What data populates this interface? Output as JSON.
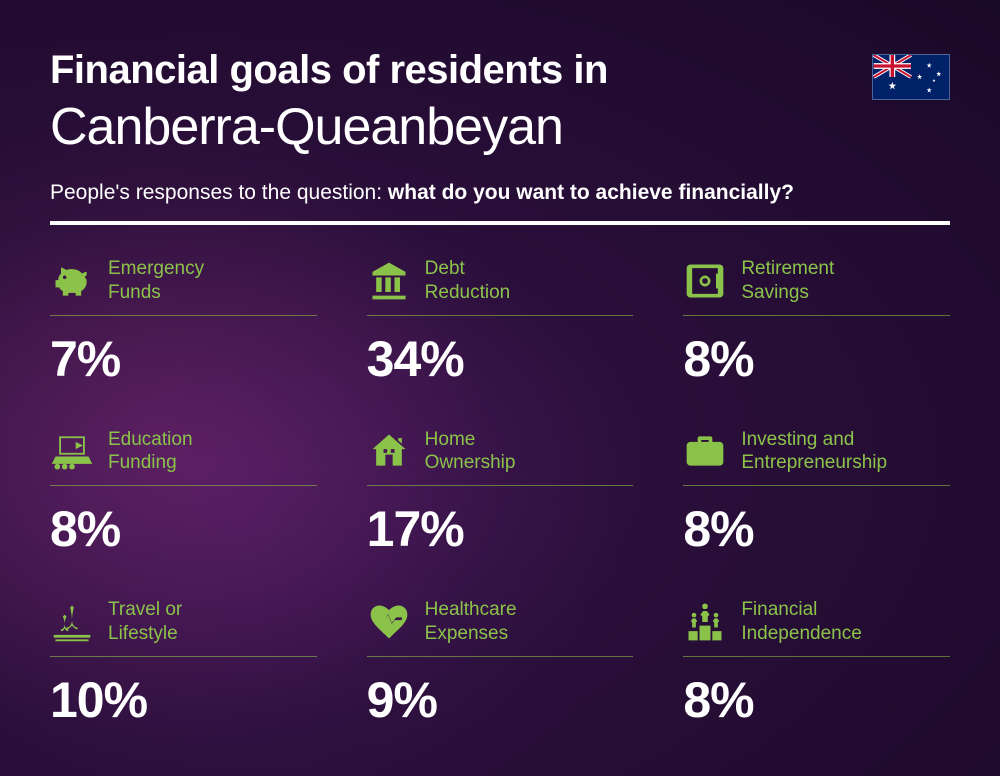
{
  "header": {
    "title_line1": "Financial goals of residents in",
    "title_line2": "Canberra-Queanbeyan",
    "subtitle_prefix": "People's responses to the question: ",
    "subtitle_bold": "what do you want to achieve financially?"
  },
  "accent_color": "#8bc34a",
  "text_color": "#ffffff",
  "items": [
    {
      "label": "Emergency\nFunds",
      "value": "7%",
      "icon": "piggy"
    },
    {
      "label": "Debt\nReduction",
      "value": "34%",
      "icon": "bank"
    },
    {
      "label": "Retirement\nSavings",
      "value": "8%",
      "icon": "safe"
    },
    {
      "label": "Education\nFunding",
      "value": "8%",
      "icon": "education"
    },
    {
      "label": "Home\nOwnership",
      "value": "17%",
      "icon": "house"
    },
    {
      "label": "Investing and\nEntrepreneurship",
      "value": "8%",
      "icon": "briefcase"
    },
    {
      "label": "Travel or\nLifestyle",
      "value": "10%",
      "icon": "travel"
    },
    {
      "label": "Healthcare\nExpenses",
      "value": "9%",
      "icon": "heart"
    },
    {
      "label": "Financial\nIndependence",
      "value": "8%",
      "icon": "podium"
    }
  ]
}
